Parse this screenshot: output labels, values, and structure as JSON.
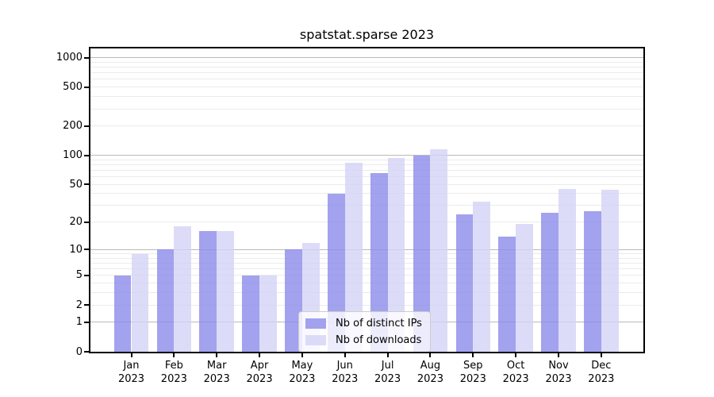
{
  "chart_data": {
    "type": "bar",
    "title": "spatstat.sparse 2023",
    "y_scale": "log1p",
    "grid": true,
    "legend_position": "lower center",
    "year": "2023",
    "categories": [
      "Jan",
      "Feb",
      "Mar",
      "Apr",
      "May",
      "Jun",
      "Jul",
      "Aug",
      "Sep",
      "Oct",
      "Nov",
      "Dec"
    ],
    "series": [
      {
        "name": "Nb of distinct IPs",
        "color": "rgba(139,139,234,0.8)",
        "values": [
          5,
          10,
          16,
          5,
          10,
          40,
          65,
          100,
          24,
          14,
          25,
          26
        ]
      },
      {
        "name": "Nb of downloads",
        "color": "rgba(211,211,246,0.8)",
        "values": [
          9,
          18,
          16,
          5,
          12,
          83,
          94,
          115,
          33,
          19,
          45,
          44
        ]
      }
    ],
    "y_ticks": [
      0,
      1,
      2,
      5,
      10,
      20,
      50,
      100,
      200,
      500,
      1000
    ],
    "ylim": [
      0,
      1240
    ],
    "xlabel": "",
    "ylabel": ""
  },
  "colors": {
    "axis": "#000000",
    "grid_major": "#b9b9b9",
    "grid_minor": "#ebebeb",
    "background": "#ffffff"
  }
}
